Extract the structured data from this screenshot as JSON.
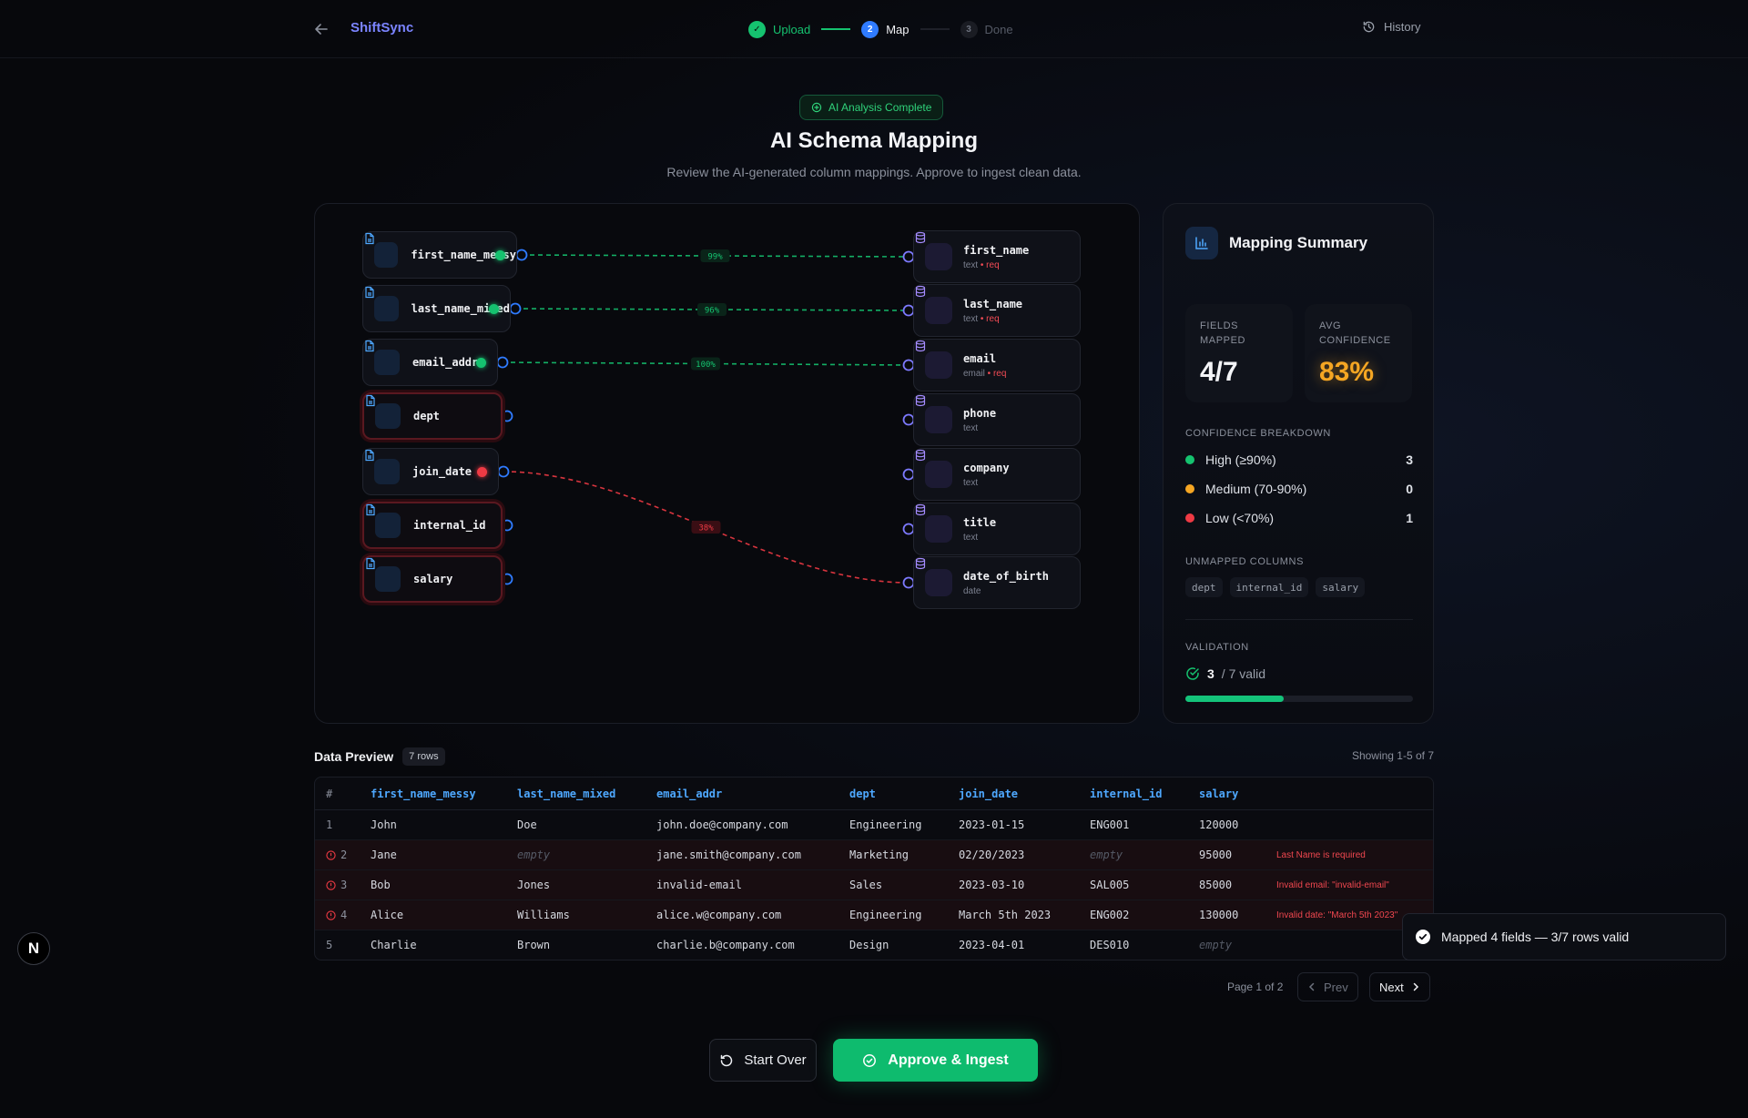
{
  "header": {
    "brand": "ShiftSync",
    "steps": [
      {
        "num": "✓",
        "label": "Upload",
        "state": "done"
      },
      {
        "num": "2",
        "label": "Map",
        "state": "active"
      },
      {
        "num": "3",
        "label": "Done",
        "state": "pending"
      }
    ],
    "history_label": "History"
  },
  "hero": {
    "badge": "AI Analysis Complete",
    "title": "AI Schema Mapping",
    "subtitle": "Review the AI-generated column mappings. Approve to ingest clean data."
  },
  "mapping": {
    "sources": [
      {
        "name": "first_name_messy",
        "status": "high"
      },
      {
        "name": "last_name_mixed",
        "status": "high"
      },
      {
        "name": "email_addr",
        "status": "high"
      },
      {
        "name": "dept",
        "status": "unmapped"
      },
      {
        "name": "join_date",
        "status": "low"
      },
      {
        "name": "internal_id",
        "status": "unmapped"
      },
      {
        "name": "salary",
        "status": "unmapped"
      }
    ],
    "targets": [
      {
        "name": "first_name",
        "type": "text",
        "required": true
      },
      {
        "name": "last_name",
        "type": "text",
        "required": true
      },
      {
        "name": "email",
        "type": "email",
        "required": true
      },
      {
        "name": "phone",
        "type": "text",
        "required": false
      },
      {
        "name": "company",
        "type": "text",
        "required": false
      },
      {
        "name": "title",
        "type": "text",
        "required": false
      },
      {
        "name": "date_of_birth",
        "type": "date",
        "required": false
      }
    ],
    "required_marker": "req",
    "links": [
      {
        "from": 0,
        "to": 0,
        "confidence": "99%",
        "color": "#15c26f"
      },
      {
        "from": 1,
        "to": 1,
        "confidence": "96%",
        "color": "#15c26f"
      },
      {
        "from": 2,
        "to": 2,
        "confidence": "100%",
        "color": "#15c26f"
      },
      {
        "from": 4,
        "to": 6,
        "confidence": "38%",
        "color": "#ee3a44"
      }
    ]
  },
  "summary": {
    "title": "Mapping Summary",
    "fields_mapped_label": "FIELDS MAPPED",
    "fields_mapped_value": "4/7",
    "avg_conf_label": "AVG CONFIDENCE",
    "avg_conf_value": "83%",
    "breakdown_label": "CONFIDENCE BREAKDOWN",
    "breakdown": [
      {
        "label": "High (≥90%)",
        "count": "3",
        "color": "#15c26f"
      },
      {
        "label": "Medium (70-90%)",
        "count": "0",
        "color": "#f5a623"
      },
      {
        "label": "Low (<70%)",
        "count": "1",
        "color": "#ee3a44"
      }
    ],
    "unmapped_label": "UNMAPPED COLUMNS",
    "unmapped": [
      "dept",
      "internal_id",
      "salary"
    ],
    "validation_label": "VALIDATION",
    "valid_count": "3",
    "valid_total": "/ 7 valid",
    "valid_fraction": 0.43
  },
  "preview": {
    "title": "Data Preview",
    "rows_badge": "7 rows",
    "showing": "Showing 1-5 of 7",
    "columns": [
      "#",
      "first_name_messy",
      "last_name_mixed",
      "email_addr",
      "dept",
      "join_date",
      "internal_id",
      "salary"
    ],
    "empty_text": "empty",
    "rows": [
      {
        "n": "1",
        "bad": false,
        "cells": [
          "John",
          "Doe",
          "john.doe@company.com",
          "Engineering",
          "2023-01-15",
          "ENG001",
          "120000"
        ],
        "error": ""
      },
      {
        "n": "2",
        "bad": true,
        "cells": [
          "Jane",
          "",
          "jane.smith@company.com",
          "Marketing",
          "02/20/2023",
          "",
          "95000"
        ],
        "error": "Last Name is required"
      },
      {
        "n": "3",
        "bad": true,
        "cells": [
          "Bob",
          "Jones",
          "invalid-email",
          "Sales",
          "2023-03-10",
          "SAL005",
          "85000"
        ],
        "error": "Invalid email: \"invalid-email\""
      },
      {
        "n": "4",
        "bad": true,
        "cells": [
          "Alice",
          "Williams",
          "alice.w@company.com",
          "Engineering",
          "March 5th 2023",
          "ENG002",
          "130000"
        ],
        "error": "Invalid date: \"March 5th 2023\""
      },
      {
        "n": "5",
        "bad": false,
        "cells": [
          "Charlie",
          "Brown",
          "charlie.b@company.com",
          "Design",
          "2023-04-01",
          "DES010",
          ""
        ],
        "error": ""
      }
    ],
    "page_text": "Page 1 of 2",
    "prev_label": "Prev",
    "next_label": "Next"
  },
  "toast": "Mapped 4 fields — 3/7 rows valid",
  "actions": {
    "start_over": "Start Over",
    "approve": "Approve & Ingest"
  },
  "dev_badge": "N"
}
